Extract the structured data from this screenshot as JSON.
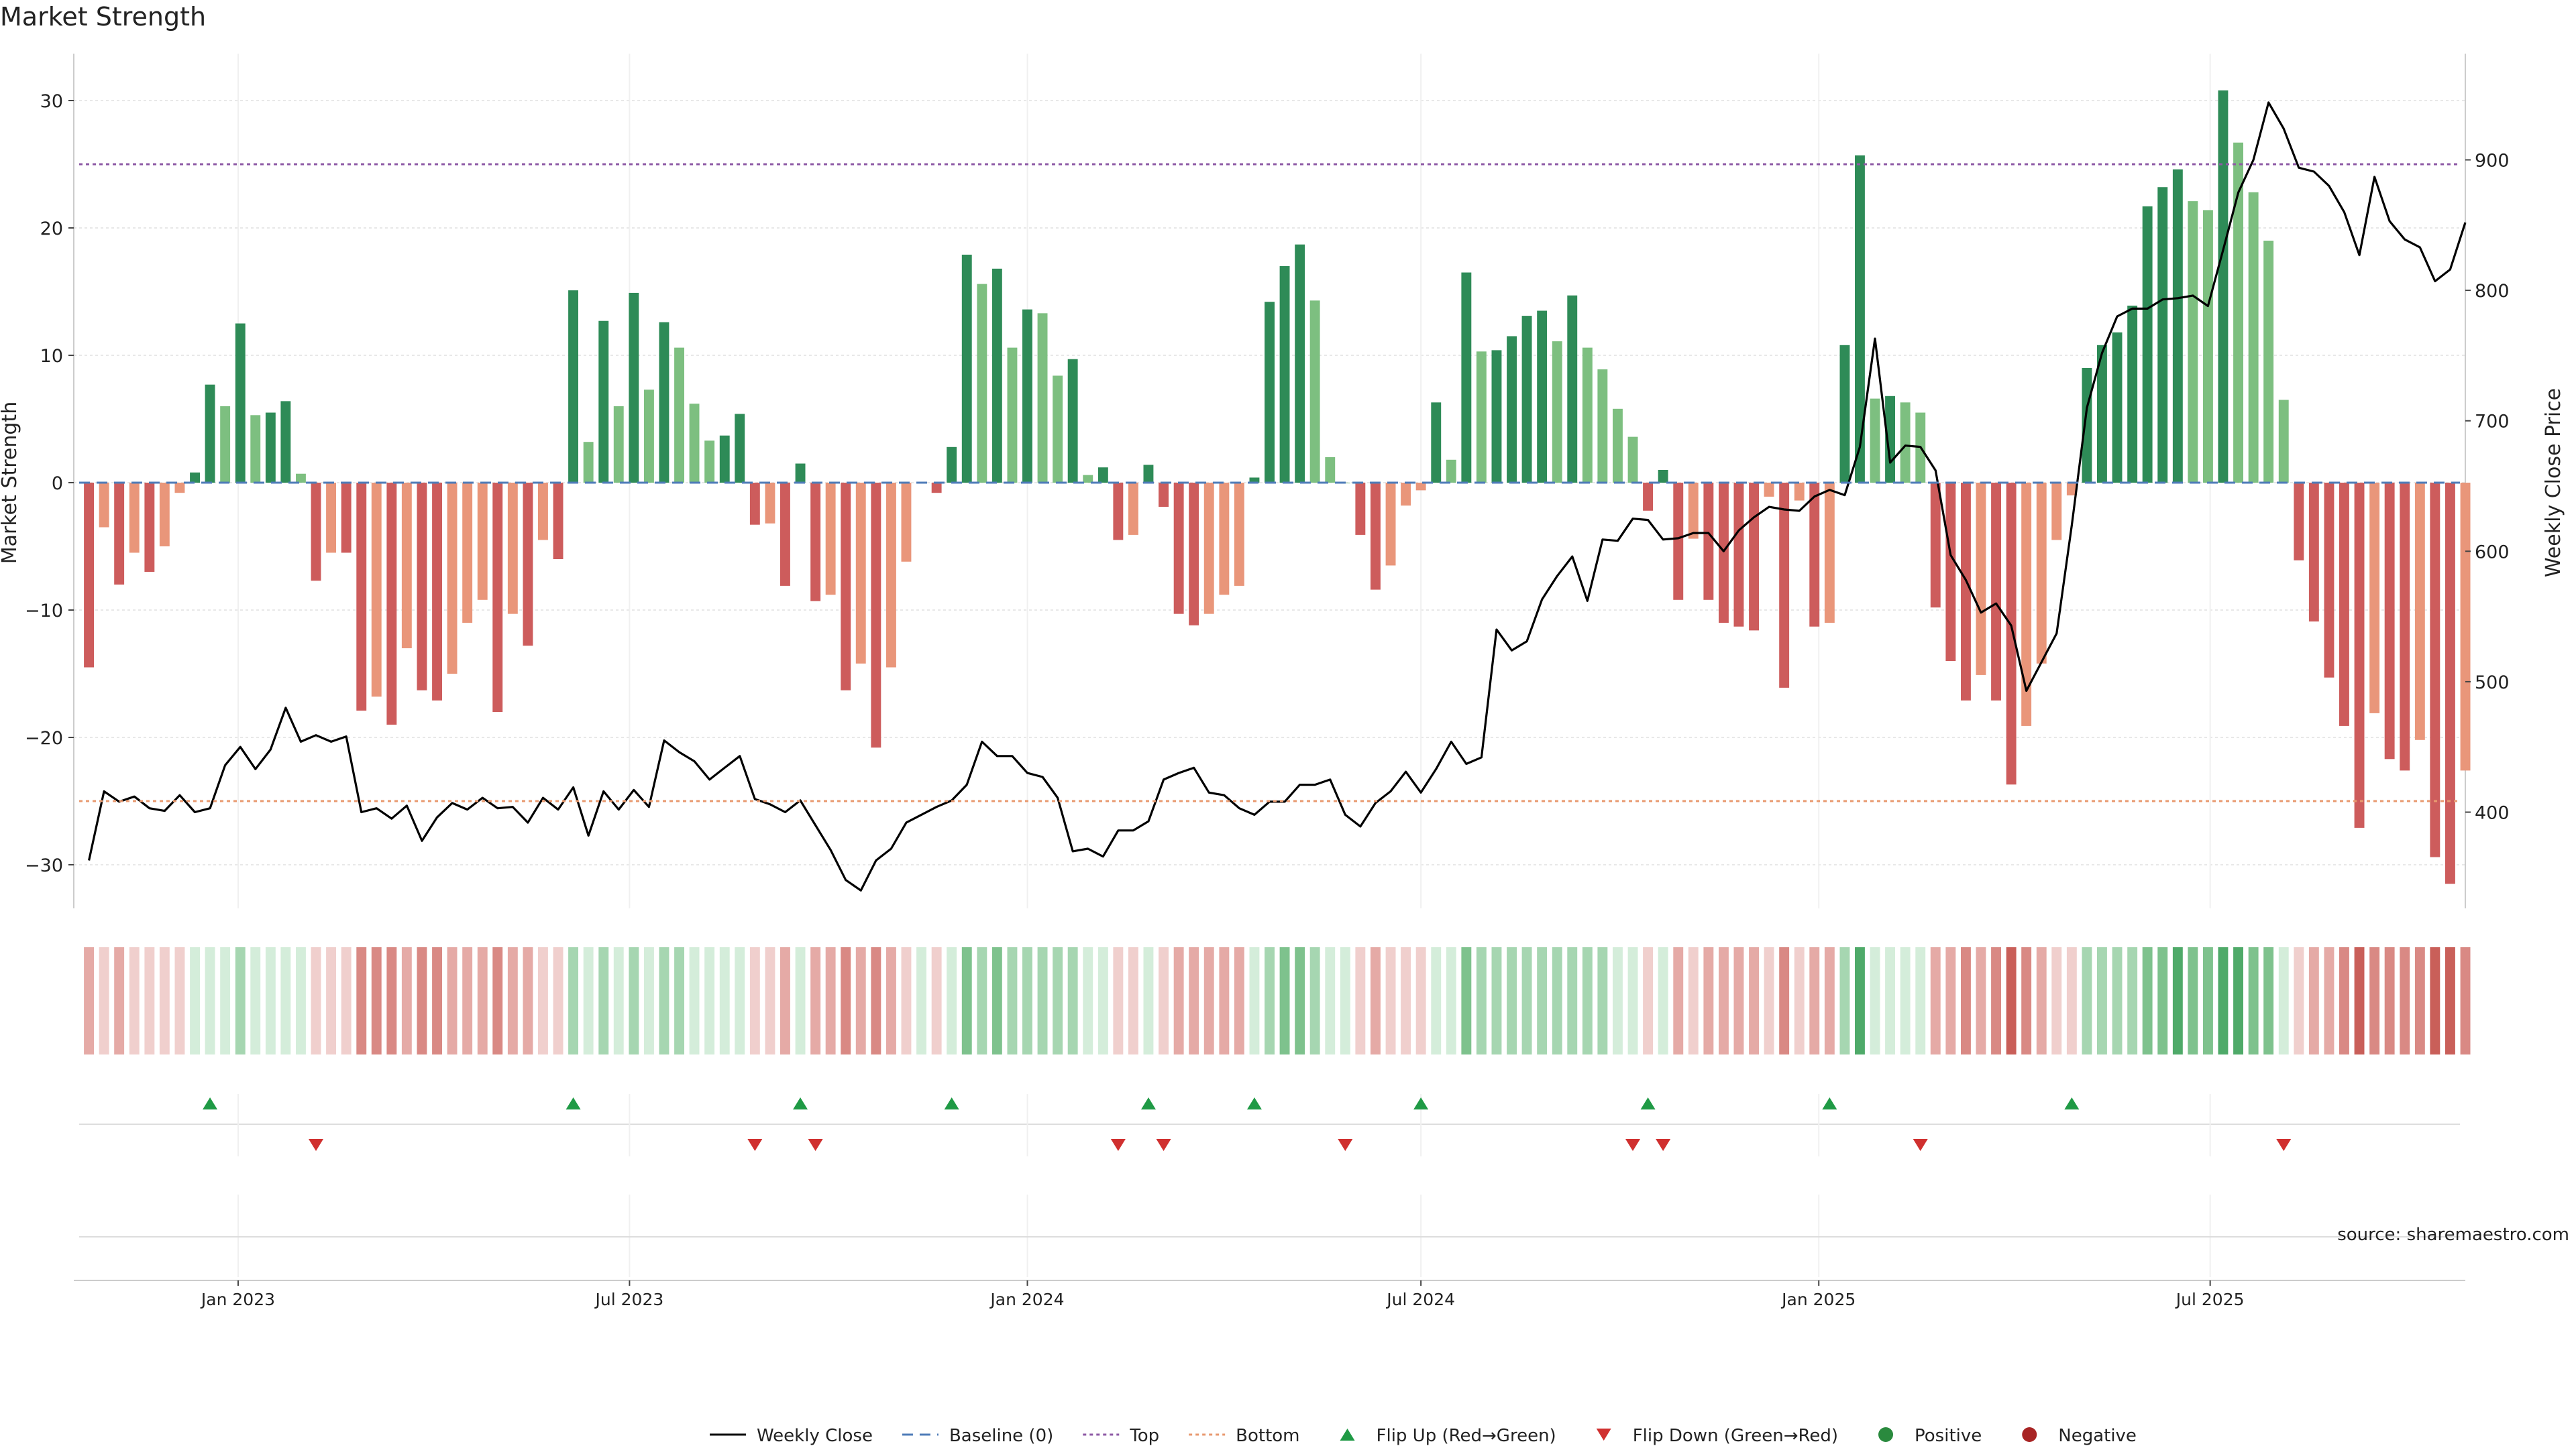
{
  "chart_data": {
    "type": "bar",
    "title": "Market Strength",
    "ylabel_left": "Market Strength",
    "ylabel_right": "Weekly Close Price",
    "source": "source: sharemaestro.com",
    "x_range": [
      "2022-10-17",
      "2025-10-27"
    ],
    "x_ticks": [
      {
        "date": "2023-01-01",
        "label": "Jan 2023"
      },
      {
        "date": "2023-07-01",
        "label": "Jul 2023"
      },
      {
        "date": "2024-01-01",
        "label": "Jan 2024"
      },
      {
        "date": "2024-07-01",
        "label": "Jul 2024"
      },
      {
        "date": "2025-01-01",
        "label": "Jan 2025"
      },
      {
        "date": "2025-07-01",
        "label": "Jul 2025"
      }
    ],
    "ylim_left": [
      -34,
      34
    ],
    "yticks_left": [
      {
        "v": 30,
        "label": "30"
      },
      {
        "v": 20,
        "label": "20"
      },
      {
        "v": 10,
        "label": "10"
      },
      {
        "v": 0,
        "label": "0"
      },
      {
        "v": -10,
        "label": "−10"
      },
      {
        "v": -20,
        "label": "−20"
      },
      {
        "v": -30,
        "label": "−30"
      }
    ],
    "ylim_right": [
      335,
      1000
    ],
    "yticks_right": [
      {
        "v": 900,
        "label": "900"
      },
      {
        "v": 800,
        "label": "800"
      },
      {
        "v": 700,
        "label": "700"
      },
      {
        "v": 600,
        "label": "600"
      },
      {
        "v": 500,
        "label": "500"
      },
      {
        "v": 400,
        "label": "400"
      }
    ],
    "thresholds": {
      "top": 25,
      "bottom": -25,
      "baseline": 0
    },
    "start_date": "2022-10-24",
    "week_step_days": 7,
    "strength": [
      -14.5,
      -3.5,
      -8,
      -5.5,
      -7,
      -5,
      -0.8,
      0.8,
      7.7,
      6,
      12.5,
      5.3,
      5.5,
      6.4,
      0.7,
      -7.7,
      -5.5,
      -5.5,
      -17.9,
      -16.8,
      -19,
      -13,
      -16.3,
      -17.1,
      -15,
      -11,
      -9.2,
      -18,
      -10.3,
      -12.8,
      -4.5,
      -6,
      15.1,
      3.2,
      12.7,
      6,
      14.9,
      7.3,
      12.6,
      10.6,
      6.2,
      3.3,
      3.7,
      5.4,
      -3.3,
      -3.2,
      -8.1,
      1.5,
      -9.3,
      -8.8,
      -16.3,
      -14.2,
      -20.8,
      -14.5,
      -6.2,
      0,
      -0.8,
      2.8,
      17.9,
      15.6,
      16.8,
      10.6,
      13.6,
      13.3,
      8.4,
      9.7,
      0.6,
      1.2,
      -4.5,
      -4.1,
      1.4,
      -1.9,
      -10.3,
      -11.2,
      -10.3,
      -8.8,
      -8.1,
      0.4,
      14.2,
      17,
      18.7,
      14.3,
      2,
      0,
      -4.1,
      -8.4,
      -6.5,
      -1.8,
      -0.6,
      6.3,
      1.8,
      16.5,
      10.3,
      10.4,
      11.5,
      13.1,
      13.5,
      11.1,
      14.7,
      10.6,
      8.9,
      5.8,
      3.6,
      -2.2,
      1,
      -9.2,
      -4.4,
      -9.2,
      -11,
      -11.3,
      -11.6,
      -1.1,
      -16.1,
      -1.4,
      -11.3,
      -11,
      10.8,
      25.7,
      6.6,
      6.8,
      6.3,
      5.5,
      -9.8,
      -14,
      -17.1,
      -15.1,
      -17.1,
      -23.7,
      -19.1,
      -14.2,
      -4.5,
      -1,
      9,
      10.8,
      11.8,
      13.9,
      21.7,
      23.2,
      24.6,
      22.1,
      21.4,
      30.8,
      26.7,
      22.8,
      19,
      6.5,
      -6.1,
      -10.9,
      -15.3,
      -19.1,
      -27.1,
      -18.1,
      -21.7,
      -22.6,
      -20.2,
      -29.4,
      -31.5,
      -22.6
    ],
    "weekly_close": [
      363,
      416,
      408,
      412,
      403,
      401,
      413,
      400,
      403,
      436,
      450,
      433,
      448,
      480,
      454,
      459,
      454,
      458,
      400,
      403,
      395,
      405,
      378,
      396,
      407,
      402,
      411,
      403,
      404,
      392,
      411,
      402,
      419,
      382,
      416,
      402,
      417,
      404,
      455,
      446,
      439,
      425,
      434,
      443,
      410,
      406,
      400,
      409,
      390,
      371,
      348,
      340,
      363,
      372,
      392,
      398,
      404,
      409,
      421,
      454,
      443,
      443,
      430,
      427,
      411,
      370,
      372,
      366,
      386,
      386,
      393,
      425,
      430,
      434,
      415,
      413,
      403,
      398,
      408,
      408,
      421,
      421,
      425,
      398,
      389,
      407,
      416,
      431,
      415,
      433,
      454,
      437,
      442,
      540,
      524,
      531,
      563,
      581,
      596,
      562,
      609,
      608,
      625,
      624,
      609,
      610,
      614,
      614,
      600,
      616,
      626,
      634,
      632,
      631,
      642,
      647,
      643,
      680,
      763,
      668,
      681,
      680,
      662,
      597,
      578,
      553,
      560,
      543,
      493,
      515,
      537,
      620,
      710,
      752,
      780,
      786,
      786,
      793,
      794,
      796,
      788,
      831,
      875,
      900,
      944,
      924,
      894,
      891,
      880,
      860,
      827,
      887,
      853,
      839,
      833,
      807,
      816,
      852
    ],
    "flip_up_weeks": [
      8,
      32,
      47,
      57,
      70,
      77,
      88,
      103,
      115,
      131
    ],
    "flip_down_weeks": [
      15,
      44,
      48,
      68,
      71,
      83,
      102,
      104,
      121,
      145
    ],
    "heat_colors": {
      "pos": [
        [
          212,
          237,
          218
        ],
        [
          166,
          214,
          177
        ],
        [
          126,
          194,
          141
        ],
        [
          79,
          170,
          105
        ]
      ],
      "neg": [
        [
          240,
          207,
          205
        ],
        [
          229,
          170,
          166
        ],
        [
          217,
          137,
          132
        ],
        [
          201,
          95,
          89
        ]
      ]
    },
    "legend": [
      {
        "name": "legend-weekly-close",
        "label": "Weekly Close",
        "kind": "line",
        "color": "#000000"
      },
      {
        "name": "legend-baseline",
        "label": "Baseline (0)",
        "kind": "dash",
        "color": "#4f7cb8"
      },
      {
        "name": "legend-top",
        "label": "Top",
        "kind": "dot",
        "color": "#8e5aa6"
      },
      {
        "name": "legend-bottom",
        "label": "Bottom",
        "kind": "dot",
        "color": "#e89a70"
      },
      {
        "name": "legend-flip-up",
        "label": "Flip Up (Red→Green)",
        "kind": "tri-up",
        "color": "#1f9a45"
      },
      {
        "name": "legend-flip-down",
        "label": "Flip Down (Green→Red)",
        "kind": "tri-down",
        "color": "#d0302f"
      },
      {
        "name": "legend-positive",
        "label": "Positive",
        "kind": "circle",
        "color": "#2a8a3e"
      },
      {
        "name": "legend-negative",
        "label": "Negative",
        "kind": "circle",
        "color": "#a82424"
      }
    ],
    "colors": {
      "pos_strong": "#2e8b57",
      "pos_weak": "#7dbf80",
      "neg_strong": "#cd5c5c",
      "neg_weak": "#e9967a",
      "line": "#000000",
      "grid": "#e8e8e8"
    }
  }
}
